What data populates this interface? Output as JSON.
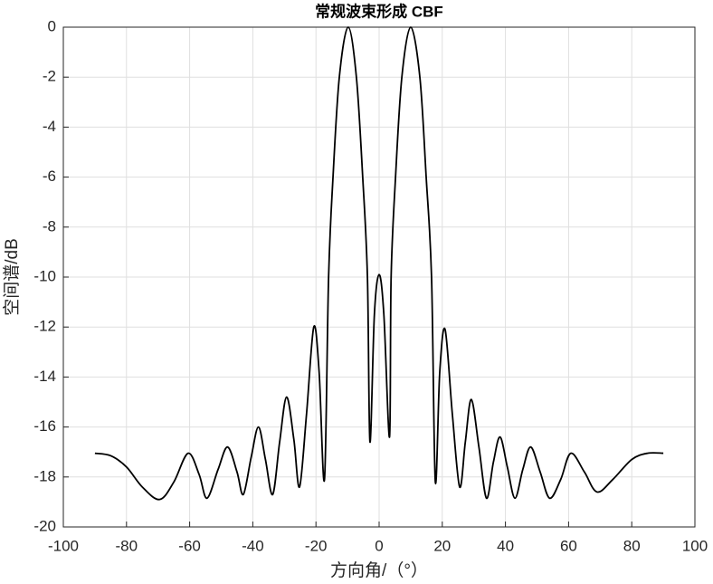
{
  "chart_data": {
    "type": "line",
    "title": "常规波束形成 CBF",
    "x_label": "方向角/（°）",
    "y_label": "空间谱/dB",
    "x": [
      -90,
      -85,
      -80,
      -75,
      -69.5,
      -65,
      -60.5,
      -57,
      -54.5,
      -51,
      -48,
      -45,
      -43,
      -40.5,
      -38.2,
      -36,
      -33.7,
      -31.5,
      -29.3,
      -27,
      -25.2,
      -23,
      -20.7,
      -19,
      -17.3,
      -16,
      -14.6,
      -12.6,
      -9.8,
      -7.2,
      -5.2,
      -3.7,
      -2.9,
      -1.5,
      0,
      1.5,
      3.3,
      3.8,
      5.2,
      7.2,
      10,
      12.9,
      14.9,
      16.6,
      17.8,
      19.2,
      20.9,
      23.2,
      25.5,
      27.3,
      29.2,
      31.6,
      34,
      36.2,
      38.3,
      40.6,
      43,
      45.5,
      48,
      51,
      54,
      57.5,
      60.7,
      65,
      69,
      74,
      80,
      85,
      90
    ],
    "series": [
      {
        "color": "#000000",
        "values": [
          -17.05,
          -17.15,
          -17.6,
          -18.4,
          -18.9,
          -18.2,
          -17.05,
          -17.9,
          -18.85,
          -17.7,
          -16.8,
          -17.8,
          -18.7,
          -17.2,
          -16.0,
          -17.3,
          -18.7,
          -16.6,
          -14.8,
          -16.5,
          -18.4,
          -15.5,
          -12.0,
          -13.8,
          -18.1,
          -10,
          -6,
          -2,
          0,
          -2,
          -6,
          -10,
          -16.6,
          -11.5,
          -9.9,
          -11.5,
          -16.4,
          -10,
          -6,
          -2,
          0,
          -2,
          -6,
          -10,
          -18.2,
          -13.8,
          -12.1,
          -15.5,
          -18.4,
          -16.6,
          -14.9,
          -16.8,
          -18.85,
          -17.4,
          -16.4,
          -17.6,
          -18.85,
          -17.7,
          -16.8,
          -17.8,
          -18.85,
          -18.1,
          -17.05,
          -17.8,
          -18.6,
          -18.1,
          -17.3,
          -17.05,
          -17.05
        ]
      }
    ],
    "xlim": [
      -100,
      100
    ],
    "xticks": [
      -100,
      -80,
      -60,
      -40,
      -20,
      0,
      20,
      40,
      60,
      80,
      100
    ],
    "ylim": [
      -20,
      0
    ],
    "yticks": [
      -20,
      -18,
      -16,
      -14,
      -12,
      -10,
      -8,
      -6,
      -4,
      -2,
      0
    ],
    "grid": true
  }
}
